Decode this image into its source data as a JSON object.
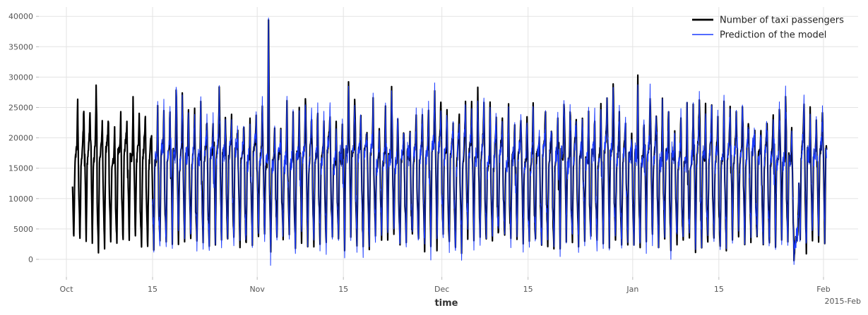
{
  "chart_data": {
    "type": "line",
    "xlabel": "time",
    "ylabel": "",
    "title": "",
    "x_range": [
      "2014-10-01",
      "2015-02-03"
    ],
    "ylim": [
      -3000,
      41500
    ],
    "grid": true,
    "legend_position": "top-right",
    "y_ticks": [
      0,
      5000,
      10000,
      15000,
      20000,
      25000,
      30000,
      35000,
      40000
    ],
    "y_tick_labels": [
      "0",
      "5000",
      "10000",
      "15000",
      "20000",
      "25000",
      "30000",
      "35000",
      "40000"
    ],
    "x_ticks": [
      {
        "date": "2014-10-01",
        "label": "Oct"
      },
      {
        "date": "2014-10-15",
        "label": "15"
      },
      {
        "date": "2014-11-01",
        "label": "Nov"
      },
      {
        "date": "2014-11-15",
        "label": "15"
      },
      {
        "date": "2014-12-01",
        "label": "Dec"
      },
      {
        "date": "2014-12-15",
        "label": "15"
      },
      {
        "date": "2015-01-01",
        "label": "Jan"
      },
      {
        "date": "2015-01-15",
        "label": "15"
      },
      {
        "date": "2015-02-01",
        "label": "Feb"
      }
    ],
    "x_offset_label": "2015-Feb",
    "series": [
      {
        "name": "Number of taxi passengers",
        "color": "#000000",
        "line_width": 2.2,
        "start": "2014-10-02",
        "end": "2015-02-01",
        "approx_daily_peak_range": [
          18000,
          28500
        ],
        "approx_daily_trough_range": [
          0,
          5000
        ],
        "notable_peaks": [
          {
            "date": "2014-11-02",
            "value": 39300
          },
          {
            "date": "2015-01-01",
            "value": 30200
          },
          {
            "date": "2014-10-18",
            "value": 28600
          },
          {
            "date": "2015-02-01",
            "value": 28800
          }
        ],
        "notable_troughs": [
          {
            "date": "2015-01-27",
            "value": -200
          }
        ]
      },
      {
        "name": "Prediction of the model",
        "color": "#1a3bff",
        "line_width": 1.0,
        "start": "2014-10-15",
        "end": "2015-02-01",
        "approx_daily_peak_range": [
          18000,
          28000
        ],
        "approx_daily_trough_range": [
          1000,
          5000
        ],
        "notable_peaks": [
          {
            "date": "2014-11-02",
            "value": 39000
          }
        ],
        "notable_troughs": [
          {
            "date": "2014-11-03",
            "value": -1000
          }
        ]
      }
    ]
  }
}
